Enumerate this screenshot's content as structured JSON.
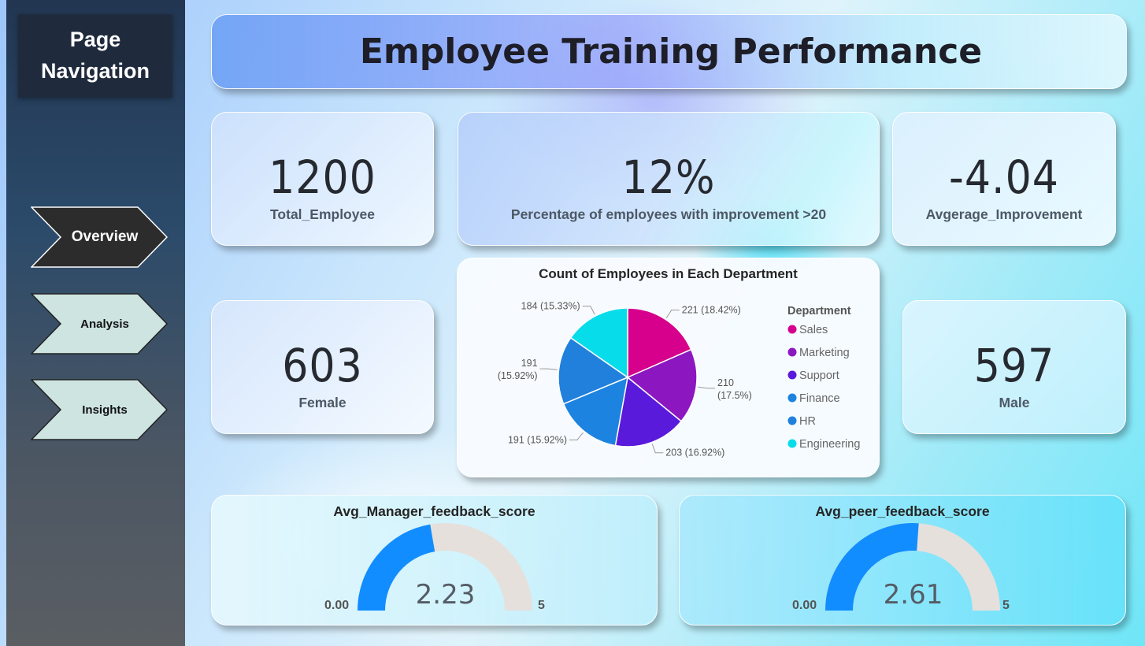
{
  "sidebar": {
    "title": "Page Navigation",
    "items": [
      {
        "label": "Overview",
        "active": true
      },
      {
        "label": "Analysis",
        "active": false
      },
      {
        "label": "Insights",
        "active": false
      }
    ]
  },
  "header": {
    "title": "Employee Training Performance"
  },
  "kpis": {
    "total_employee": {
      "value": "1200",
      "label": "Total_Employee"
    },
    "pct_improvement": {
      "value": "12%",
      "label": "Percentage of employees with improvement >20"
    },
    "avg_improvement": {
      "value": "-4.04",
      "label": "Avgerage_Improvement"
    },
    "female": {
      "value": "603",
      "label": "Female"
    },
    "male": {
      "value": "597",
      "label": "Male"
    }
  },
  "chart_data": [
    {
      "type": "pie",
      "title": "Count of Employees in Each Department",
      "legend_title": "Department",
      "legend_position": "right",
      "categories": [
        "Sales",
        "Marketing",
        "Support",
        "Finance",
        "HR",
        "Engineering"
      ],
      "values": [
        221,
        210,
        203,
        191,
        191,
        184
      ],
      "data_labels": [
        "221 (18.42%)",
        "210 (17.5%)",
        "203 (16.92%)",
        "191 (15.92%)",
        "191 (15.92%)",
        "184 (15.33%)"
      ],
      "colors": [
        "#d6008c",
        "#8c17c0",
        "#5a1adb",
        "#1c83e0",
        "#2080dc",
        "#07dceb"
      ]
    },
    {
      "type": "gauge",
      "title": "Avg_Manager_feedback_score",
      "min": 0,
      "max": 5,
      "value": 2.23,
      "min_label": "0.00",
      "max_label": "5",
      "value_label": "2.23",
      "fill_color": "#118dff",
      "track_color": "#e5e0dc"
    },
    {
      "type": "gauge",
      "title": "Avg_peer_feedback_score",
      "min": 0,
      "max": 5,
      "value": 2.61,
      "min_label": "0.00",
      "max_label": "5",
      "value_label": "2.61",
      "fill_color": "#118dff",
      "track_color": "#e5e0dc"
    }
  ]
}
